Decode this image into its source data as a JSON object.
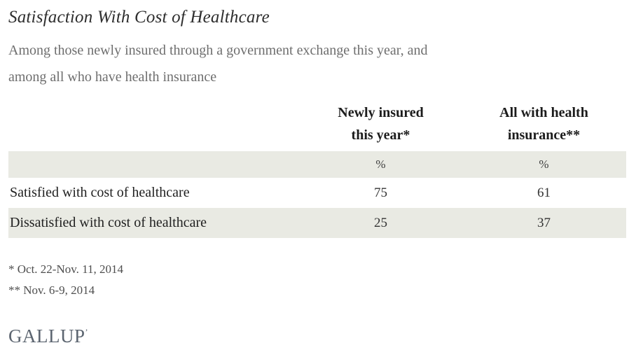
{
  "page": {
    "title": "Satisfaction With Cost of Healthcare",
    "subtitle_line1": "Among those newly insured through a government exchange this year, and",
    "subtitle_line2": "among all who have health insurance",
    "logo": "GALLUP",
    "logo_mark": "’"
  },
  "table_display": {
    "col1_header_line1": "Newly insured",
    "col1_header_line2": "this year*",
    "col2_header_line1": "All with health",
    "col2_header_line2": "insurance**",
    "unit_col1": "%",
    "unit_col2": "%"
  },
  "footnotes": {
    "line1": "* Oct. 22-Nov. 11, 2014",
    "line2": "** Nov. 6-9, 2014"
  },
  "colors": {
    "stripe": "#e9eae3",
    "logo": "#5c6570"
  },
  "chart_data": {
    "type": "table",
    "title": "Satisfaction With Cost of Healthcare",
    "subtitle": "Among those newly insured through a government exchange this year, and among all who have health insurance",
    "columns": [
      "Newly insured this year*",
      "All with health insurance**"
    ],
    "unit_row": [
      "%",
      "%"
    ],
    "rows": [
      {
        "label": "Satisfied with cost of healthcare",
        "values": [
          75,
          61
        ]
      },
      {
        "label": "Dissatisfied with cost of healthcare",
        "values": [
          25,
          37
        ]
      }
    ],
    "footnotes": [
      "* Oct. 22-Nov. 11, 2014",
      "** Nov. 6-9, 2014"
    ],
    "source": "GALLUP"
  }
}
